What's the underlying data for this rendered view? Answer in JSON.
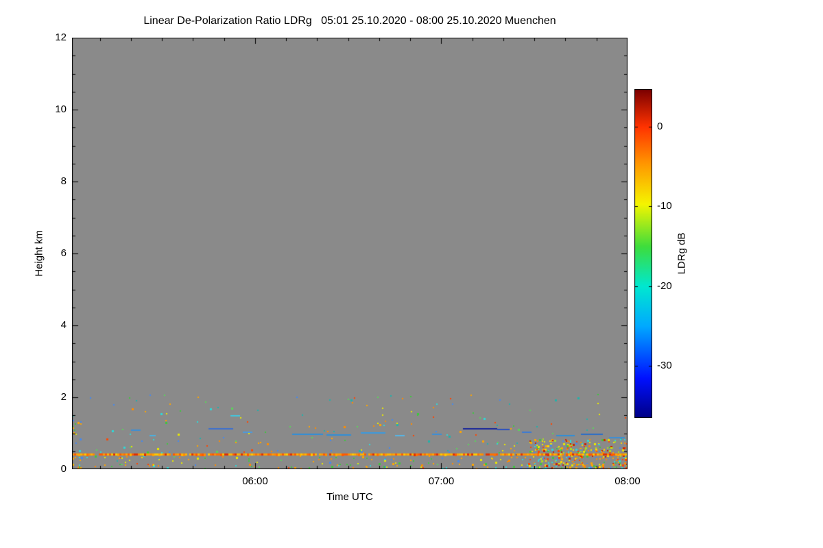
{
  "chart_data": {
    "type": "heatmap",
    "title": "Linear De-Polarization Ratio LDRg   05:01 25.10.2020 - 08:00 25.10.2020 Muenchen",
    "station": "Muenchen",
    "time_start": "05:01 25.10.2020",
    "time_end": "08:00 25.10.2020",
    "xlabel": "Time UTC",
    "ylabel": "Height km",
    "plot_background": "#8a8a8a",
    "x_axis": {
      "start_minutes": 301,
      "end_minutes": 480,
      "major_ticks": [
        {
          "minutes": 360,
          "label": "06:00"
        },
        {
          "minutes": 420,
          "label": "07:00"
        },
        {
          "minutes": 480,
          "label": "08:00"
        }
      ],
      "minor_tick_step_minutes": 10
    },
    "y_axis": {
      "min": 0,
      "max": 12,
      "major_ticks": [
        0,
        2,
        4,
        6,
        8,
        10,
        12
      ],
      "minor_tick_step": 0.5
    },
    "colorbar": {
      "label": "LDRg dB",
      "value_top": 4.7,
      "value_bottom": -36.5,
      "ticks": [
        0,
        -10,
        -20,
        -30
      ],
      "colormap": "jet",
      "gradient_stops": [
        [
          0.0,
          "#000085"
        ],
        [
          0.12,
          "#0010ff"
        ],
        [
          0.28,
          "#00aaff"
        ],
        [
          0.4,
          "#00e8d0"
        ],
        [
          0.52,
          "#3ddd3d"
        ],
        [
          0.65,
          "#f5f500"
        ],
        [
          0.77,
          "#ff9900"
        ],
        [
          0.885,
          "#ff3300"
        ],
        [
          1.0,
          "#7a0000"
        ]
      ]
    },
    "features": {
      "surface_echo_line": {
        "height_km": 0.42,
        "t_start": 301,
        "t_end": 480,
        "seed": 3,
        "gap_probability": 0.03,
        "colors": [
          "#ff9a00",
          "#ffa500",
          "#ff8c00",
          "#ffb400",
          "#ff7000",
          "#ffc800",
          "#ff5a00",
          "#e03000"
        ],
        "description": "continuous near-surface orange echo line"
      },
      "cloud_streaks": [
        {
          "t0": 320,
          "t1": 323,
          "h": 1.1,
          "color": "#3a8fd8"
        },
        {
          "t0": 326,
          "t1": 328,
          "h": 0.95,
          "color": "#4ab0e0"
        },
        {
          "t0": 345,
          "t1": 353,
          "h": 1.15,
          "color": "#3a6fd0"
        },
        {
          "t0": 352,
          "t1": 355,
          "h": 1.5,
          "color": "#40c8e0"
        },
        {
          "t0": 356,
          "t1": 359,
          "h": 1.05,
          "color": "#4a9ade"
        },
        {
          "t0": 372,
          "t1": 382,
          "h": 1.0,
          "color": "#2e8fd8"
        },
        {
          "t0": 383,
          "t1": 391,
          "h": 0.98,
          "color": "#2e8fd8"
        },
        {
          "t0": 394,
          "t1": 402,
          "h": 1.02,
          "color": "#3a9ae0"
        },
        {
          "t0": 405,
          "t1": 408,
          "h": 0.95,
          "color": "#55b5e5"
        },
        {
          "t0": 417,
          "t1": 420,
          "h": 1.0,
          "color": "#3a8fd8"
        },
        {
          "t0": 427,
          "t1": 438,
          "h": 1.15,
          "color": "#16249a"
        },
        {
          "t0": 438,
          "t1": 442,
          "h": 1.12,
          "color": "#2a50c0"
        },
        {
          "t0": 446,
          "t1": 449,
          "h": 1.05,
          "color": "#3a7bd5"
        },
        {
          "t0": 444,
          "t1": 448,
          "h": 0.42,
          "color": "#7a1200"
        },
        {
          "t0": 457,
          "t1": 463,
          "h": 0.95,
          "color": "#2e8fd8"
        },
        {
          "t0": 465,
          "t1": 472,
          "h": 1.0,
          "color": "#2a6fc8"
        },
        {
          "t0": 474,
          "t1": 479,
          "h": 0.9,
          "color": "#3a8fd8"
        }
      ],
      "speckle_fields": [
        {
          "seed": 7,
          "t0": 301,
          "t1": 480,
          "h_min": 0.05,
          "h_max": 2.1,
          "bias": 1.7,
          "count": 240,
          "palette": [
            "#3ec63e",
            "#2fd8d8",
            "#ffa500",
            "#e8e800",
            "#4488ee",
            "#ff4500",
            "#5ad45a",
            "#20b2aa",
            "#ff8c00"
          ]
        },
        {
          "seed": 11,
          "t0": 448,
          "t1": 480,
          "h_min": 0.05,
          "h_max": 0.85,
          "bias": 1.0,
          "count": 300,
          "palette": [
            "#ffa500",
            "#e8e800",
            "#3ec63e",
            "#2fd8d8",
            "#ff4500",
            "#ff8c00",
            "#aadd22",
            "#4488ee",
            "#cc2200",
            "#ffd700"
          ]
        },
        {
          "seed": 19,
          "t0": 301,
          "t1": 480,
          "h_min": 0.02,
          "h_max": 0.38,
          "bias": 1.0,
          "count": 110,
          "palette": [
            "#3ec63e",
            "#2fd8d8",
            "#ffa500",
            "#e8e800",
            "#ff8c00"
          ]
        },
        {
          "seed": 23,
          "t0": 301,
          "t1": 304,
          "h_min": 0.05,
          "h_max": 1.4,
          "bias": 1.0,
          "count": 20,
          "palette": [
            "#3ec63e",
            "#2fd8d8",
            "#ffa500",
            "#4488ee"
          ]
        }
      ]
    }
  }
}
